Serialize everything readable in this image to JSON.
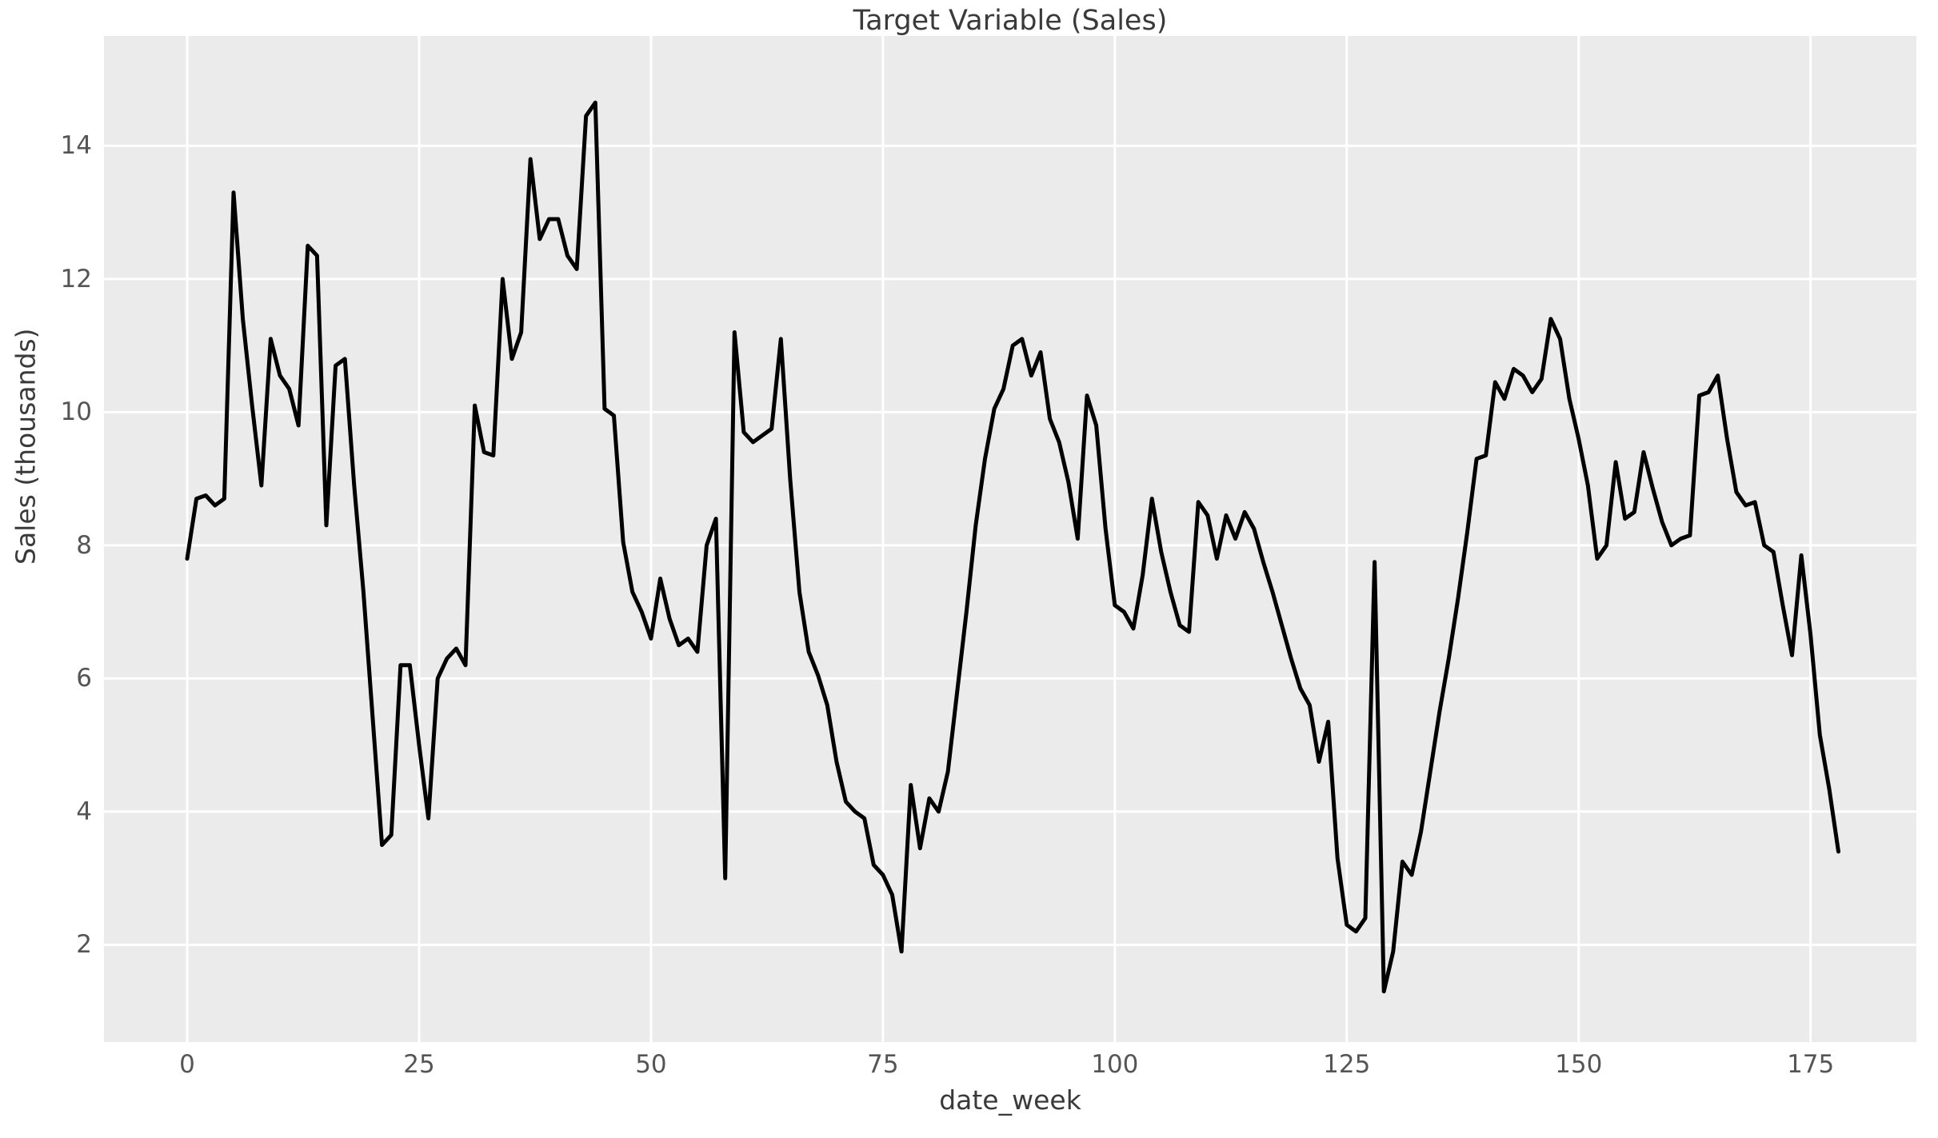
{
  "chart_data": {
    "type": "line",
    "title": "Target Variable (Sales)",
    "xlabel": "date_week",
    "ylabel": "Sales (thousands)",
    "series_name": "Sales",
    "grid": true,
    "legend": "none",
    "background_color": "#ebebeb",
    "grid_color": "#ffffff",
    "line_color": "#000000",
    "figure_color": "#ffffff",
    "tick_color": "#555555",
    "text_color": "#3a3a3a",
    "xticks": [
      0,
      25,
      50,
      75,
      100,
      125,
      150,
      175
    ],
    "yticks": [
      2,
      4,
      6,
      8,
      10,
      12,
      14
    ],
    "xlim": [
      -8.97,
      186.41
    ],
    "ylim": [
      0.54,
      15.65
    ],
    "x": [
      0,
      1,
      2,
      3,
      4,
      5,
      6,
      7,
      8,
      9,
      10,
      11,
      12,
      13,
      14,
      15,
      16,
      17,
      18,
      19,
      20,
      21,
      22,
      23,
      24,
      25,
      26,
      27,
      28,
      29,
      30,
      31,
      32,
      33,
      34,
      35,
      36,
      37,
      38,
      39,
      40,
      41,
      42,
      43,
      44,
      45,
      46,
      47,
      48,
      49,
      50,
      51,
      52,
      53,
      54,
      55,
      56,
      57,
      58,
      59,
      60,
      61,
      62,
      63,
      64,
      65,
      66,
      67,
      68,
      69,
      70,
      71,
      72,
      73,
      74,
      75,
      76,
      77,
      78,
      79,
      80,
      81,
      82,
      83,
      84,
      85,
      86,
      87,
      88,
      89,
      90,
      91,
      92,
      93,
      94,
      95,
      96,
      97,
      98,
      99,
      100,
      101,
      102,
      103,
      104,
      105,
      106,
      107,
      108,
      109,
      110,
      111,
      112,
      113,
      114,
      115,
      116,
      117,
      118,
      119,
      120,
      121,
      122,
      123,
      124,
      125,
      126,
      127,
      128,
      129,
      130,
      131,
      132,
      133,
      134,
      135,
      136,
      137,
      138,
      139,
      140,
      141,
      142,
      143,
      144,
      145,
      146,
      147,
      148,
      149,
      150,
      151,
      152,
      153,
      154,
      155,
      156,
      157,
      158,
      159,
      160,
      161,
      162,
      163,
      164,
      165,
      166,
      167,
      168,
      169,
      170,
      171,
      172,
      173,
      174,
      175,
      176,
      177,
      178
    ],
    "y": [
      7.8,
      8.7,
      8.75,
      8.6,
      8.7,
      13.3,
      11.4,
      10.1,
      8.9,
      11.1,
      10.55,
      10.35,
      9.8,
      12.5,
      12.35,
      8.3,
      10.7,
      10.8,
      8.9,
      7.3,
      5.4,
      3.5,
      3.65,
      6.2,
      6.2,
      5.0,
      3.9,
      6.0,
      6.3,
      6.45,
      6.2,
      10.1,
      9.4,
      9.35,
      12.0,
      10.8,
      11.2,
      13.8,
      12.6,
      12.9,
      12.9,
      12.35,
      12.15,
      14.45,
      14.65,
      10.05,
      9.95,
      8.05,
      7.3,
      7.0,
      6.6,
      7.5,
      6.9,
      6.5,
      6.6,
      6.4,
      8.0,
      8.4,
      3.0,
      11.2,
      9.7,
      9.55,
      9.65,
      9.75,
      11.1,
      9.0,
      7.3,
      6.4,
      6.05,
      5.6,
      4.75,
      4.15,
      4.0,
      3.9,
      3.2,
      3.05,
      2.75,
      1.9,
      4.4,
      3.45,
      4.2,
      4.0,
      4.6,
      5.8,
      7.0,
      8.3,
      9.3,
      10.05,
      10.35,
      11.0,
      11.1,
      10.55,
      10.9,
      9.9,
      9.55,
      8.95,
      8.1,
      10.25,
      9.8,
      8.25,
      7.1,
      7.0,
      6.75,
      7.55,
      8.7,
      7.9,
      7.3,
      6.8,
      6.7,
      8.65,
      8.45,
      7.8,
      8.45,
      8.1,
      8.5,
      8.25,
      7.75,
      7.3,
      6.8,
      6.3,
      5.85,
      5.6,
      4.75,
      5.35,
      3.3,
      2.3,
      2.2,
      2.4,
      7.75,
      1.3,
      1.9,
      3.25,
      3.05,
      3.7,
      4.6,
      5.5,
      6.3,
      7.2,
      8.2,
      9.3,
      9.35,
      10.45,
      10.2,
      10.65,
      10.55,
      10.3,
      10.5,
      11.4,
      11.1,
      10.2,
      9.6,
      8.9,
      7.8,
      8.0,
      9.25,
      8.4,
      8.5,
      9.4,
      8.85,
      8.35,
      8.0,
      8.1,
      8.15,
      10.25,
      10.3,
      10.55,
      9.6,
      8.8,
      8.6,
      8.65,
      8.0,
      7.9,
      7.1,
      6.35,
      7.85,
      6.65,
      5.15,
      4.35,
      3.4
    ]
  }
}
